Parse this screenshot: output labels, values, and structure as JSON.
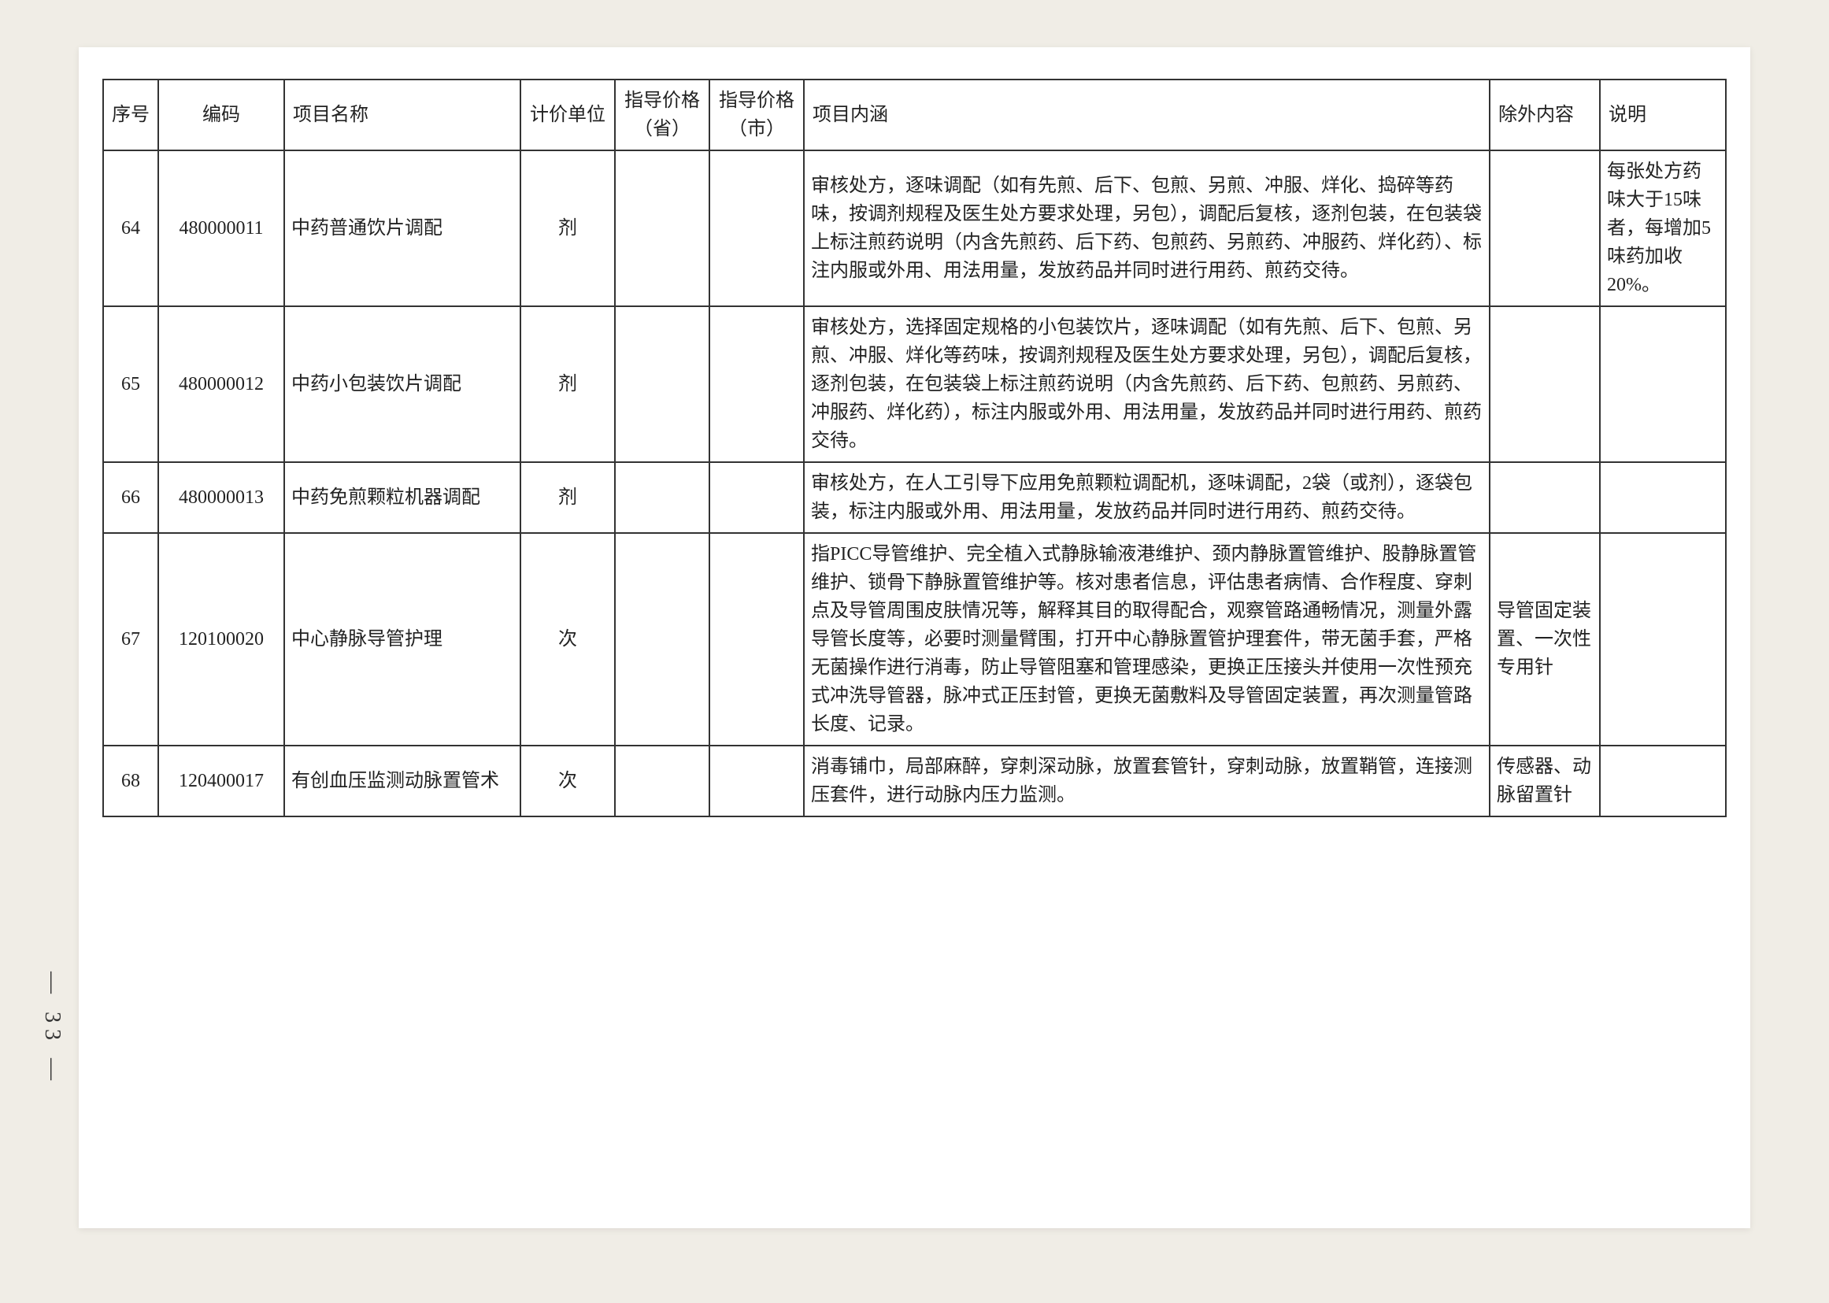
{
  "page_number": "— 33 —",
  "headers": {
    "seq": "序号",
    "code": "编码",
    "name": "项目名称",
    "unit": "计价单位",
    "price1": "指导价格（省）",
    "price2": "指导价格（市）",
    "desc": "项目内涵",
    "excl": "除外内容",
    "note": "说明"
  },
  "rows": [
    {
      "seq": "64",
      "code": "480000011",
      "name": "中药普通饮片调配",
      "unit": "剂",
      "price1": "",
      "price2": "",
      "desc": "审核处方，逐味调配（如有先煎、后下、包煎、另煎、冲服、烊化、捣碎等药味，按调剂规程及医生处方要求处理，另包），调配后复核，逐剂包装，在包装袋上标注煎药说明（内含先煎药、后下药、包煎药、另煎药、冲服药、烊化药）、标注内服或外用、用法用量，发放药品并同时进行用药、煎药交待。",
      "excl": "",
      "note": "每张处方药味大于15味者，每增加5味药加收20%。"
    },
    {
      "seq": "65",
      "code": "480000012",
      "name": "中药小包装饮片调配",
      "unit": "剂",
      "price1": "",
      "price2": "",
      "desc": "审核处方，选择固定规格的小包装饮片，逐味调配（如有先煎、后下、包煎、另煎、冲服、烊化等药味，按调剂规程及医生处方要求处理，另包），调配后复核，逐剂包装，在包装袋上标注煎药说明（内含先煎药、后下药、包煎药、另煎药、冲服药、烊化药），标注内服或外用、用法用量，发放药品并同时进行用药、煎药交待。",
      "excl": "",
      "note": ""
    },
    {
      "seq": "66",
      "code": "480000013",
      "name": "中药免煎颗粒机器调配",
      "unit": "剂",
      "price1": "",
      "price2": "",
      "desc": "审核处方，在人工引导下应用免煎颗粒调配机，逐味调配，2袋（或剂），逐袋包装，标注内服或外用、用法用量，发放药品并同时进行用药、煎药交待。",
      "excl": "",
      "note": ""
    },
    {
      "seq": "67",
      "code": "120100020",
      "name": "中心静脉导管护理",
      "unit": "次",
      "price1": "",
      "price2": "",
      "desc": "指PICC导管维护、完全植入式静脉输液港维护、颈内静脉置管维护、股静脉置管维护、锁骨下静脉置管维护等。核对患者信息，评估患者病情、合作程度、穿刺点及导管周围皮肤情况等，解释其目的取得配合，观察管路通畅情况，测量外露导管长度等，必要时测量臂围，打开中心静脉置管护理套件，带无菌手套，严格无菌操作进行消毒，防止导管阻塞和管理感染，更换正压接头并使用一次性预充式冲洗导管器，脉冲式正压封管，更换无菌敷料及导管固定装置，再次测量管路长度、记录。",
      "excl": "导管固定装置、一次性专用针",
      "note": ""
    },
    {
      "seq": "68",
      "code": "120400017",
      "name": "有创血压监测动脉置管术",
      "unit": "次",
      "price1": "",
      "price2": "",
      "desc": "消毒铺巾，局部麻醉，穿刺深动脉，放置套管针，穿刺动脉，放置鞘管，连接测压套件，进行动脉内压力监测。",
      "excl": "传感器、动脉留置针",
      "note": ""
    }
  ]
}
